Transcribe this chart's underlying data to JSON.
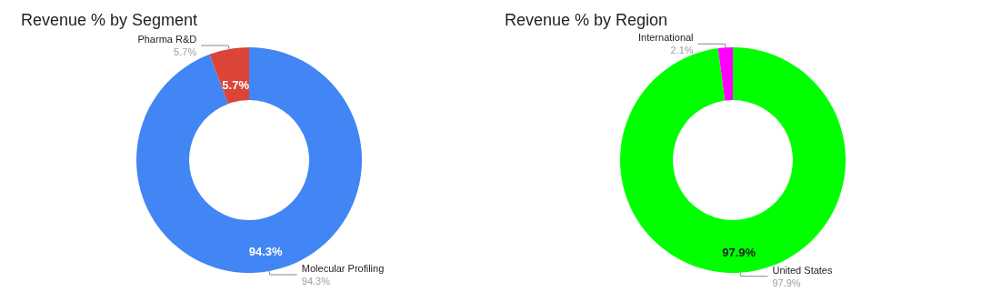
{
  "chart_data": [
    {
      "type": "donut",
      "title": "Revenue % by Segment",
      "categories": [
        "Molecular Profiling",
        "Pharma R&D"
      ],
      "values": [
        94.3,
        5.7
      ],
      "colors": [
        "#4285f4",
        "#db4437"
      ],
      "value_labels": [
        "94.3%",
        "5.7%"
      ]
    },
    {
      "type": "donut",
      "title": "Revenue % by Region",
      "categories": [
        "United States",
        "International"
      ],
      "values": [
        97.9,
        2.1
      ],
      "colors": [
        "#00ff00",
        "#ff00ff"
      ],
      "value_labels": [
        "97.9%",
        "2.1%"
      ]
    }
  ]
}
